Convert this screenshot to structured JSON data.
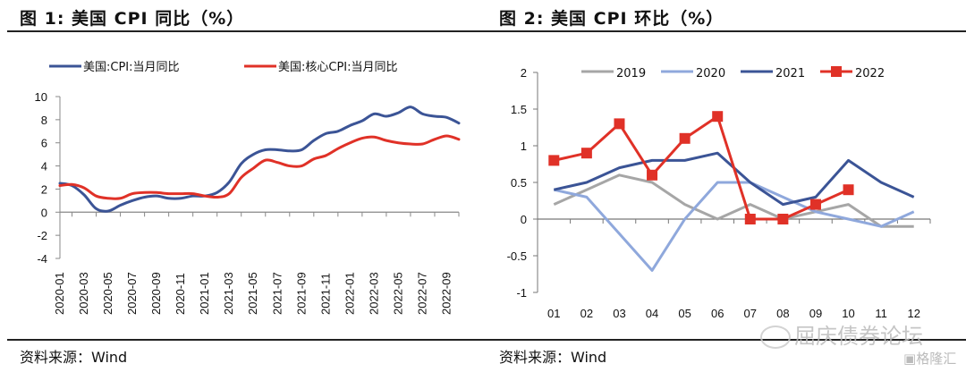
{
  "figures": [
    {
      "title": "图 1:   美国 CPI 同比（%）",
      "source": "资料来源：Wind"
    },
    {
      "title": "图 2:   美国 CPI 环比（%）",
      "source": "资料来源：Wind"
    }
  ],
  "watermark": {
    "text": "屈庆债券论坛",
    "icon": "wechat-icon",
    "corner_text": "格隆汇",
    "corner_icon": "gelonghui-logo-icon"
  },
  "chart_data": [
    {
      "type": "line",
      "title": "美国 CPI 同比（%）",
      "xlabel": "",
      "ylabel": "",
      "ylim": [
        -4,
        10
      ],
      "yticks": [
        10,
        8,
        6,
        4,
        2,
        0,
        -2,
        -4
      ],
      "grid": false,
      "legend_position": "top",
      "x": [
        "2020-01",
        "2020-02",
        "2020-03",
        "2020-04",
        "2020-05",
        "2020-06",
        "2020-07",
        "2020-08",
        "2020-09",
        "2020-10",
        "2020-11",
        "2020-12",
        "2021-01",
        "2021-02",
        "2021-03",
        "2021-04",
        "2021-05",
        "2021-06",
        "2021-07",
        "2021-08",
        "2021-09",
        "2021-10",
        "2021-11",
        "2021-12",
        "2022-01",
        "2022-02",
        "2022-03",
        "2022-04",
        "2022-05",
        "2022-06",
        "2022-07",
        "2022-08",
        "2022-09",
        "2022-10"
      ],
      "xtick_labels": [
        "2020-01",
        "2020-03",
        "2020-05",
        "2020-07",
        "2020-09",
        "2020-11",
        "2021-01",
        "2021-03",
        "2021-05",
        "2021-07",
        "2021-09",
        "2021-11",
        "2022-01",
        "2022-03",
        "2022-05",
        "2022-07",
        "2022-09"
      ],
      "series": [
        {
          "name": "美国:CPI:当月同比",
          "color": "#3b5496",
          "values": [
            2.5,
            2.3,
            1.5,
            0.3,
            0.1,
            0.6,
            1.0,
            1.3,
            1.4,
            1.2,
            1.2,
            1.4,
            1.4,
            1.7,
            2.6,
            4.2,
            5.0,
            5.4,
            5.4,
            5.3,
            5.4,
            6.2,
            6.8,
            7.0,
            7.5,
            7.9,
            8.5,
            8.3,
            8.6,
            9.1,
            8.5,
            8.3,
            8.2,
            7.7
          ]
        },
        {
          "name": "美国:核心CPI:当月同比",
          "color": "#e03127",
          "values": [
            2.3,
            2.4,
            2.1,
            1.4,
            1.2,
            1.2,
            1.6,
            1.7,
            1.7,
            1.6,
            1.6,
            1.6,
            1.4,
            1.3,
            1.6,
            3.0,
            3.8,
            4.5,
            4.3,
            4.0,
            4.0,
            4.6,
            4.9,
            5.5,
            6.0,
            6.4,
            6.5,
            6.2,
            6.0,
            5.9,
            5.9,
            6.3,
            6.6,
            6.3
          ]
        }
      ]
    },
    {
      "type": "line",
      "title": "美国 CPI 环比（%）",
      "xlabel": "",
      "ylabel": "",
      "ylim": [
        -1,
        2
      ],
      "yticks": [
        2,
        1.5,
        1,
        0.5,
        0,
        -0.5,
        -1
      ],
      "ytick_labels": [
        "2",
        "1.5",
        "1",
        "0.5",
        "0",
        "-0.5",
        "-1"
      ],
      "grid": false,
      "legend_position": "top",
      "categories": [
        "01",
        "02",
        "03",
        "04",
        "05",
        "06",
        "07",
        "08",
        "09",
        "10",
        "11",
        "12"
      ],
      "series": [
        {
          "name": "2019",
          "color": "#a6a6a6",
          "marker": "none",
          "values": [
            0.2,
            0.4,
            0.6,
            0.5,
            0.2,
            0.0,
            0.2,
            0.0,
            0.1,
            0.2,
            -0.1,
            -0.1
          ]
        },
        {
          "name": "2020",
          "color": "#8fa8dc",
          "marker": "none",
          "values": [
            0.4,
            0.3,
            -0.2,
            -0.7,
            0.0,
            0.5,
            0.5,
            0.3,
            0.1,
            0.0,
            -0.1,
            0.1
          ]
        },
        {
          "name": "2021",
          "color": "#3b5496",
          "marker": "none",
          "values": [
            0.4,
            0.5,
            0.7,
            0.8,
            0.8,
            0.9,
            0.5,
            0.2,
            0.3,
            0.8,
            0.5,
            0.3
          ]
        },
        {
          "name": "2022",
          "color": "#e03127",
          "marker": "square",
          "values": [
            0.8,
            0.9,
            1.3,
            0.6,
            1.1,
            1.4,
            0.0,
            0.0,
            0.2,
            0.4,
            null,
            null
          ]
        }
      ]
    }
  ]
}
